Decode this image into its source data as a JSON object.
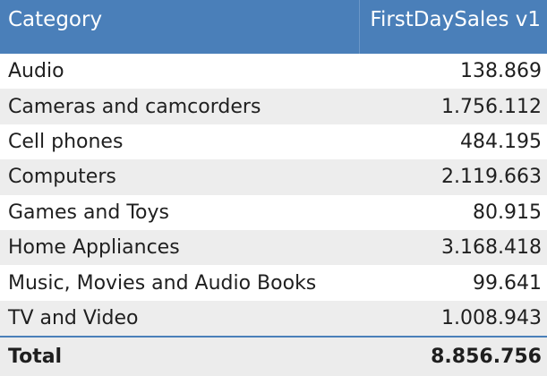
{
  "table": {
    "columns": [
      "Category",
      "FirstDaySales v1"
    ],
    "rows": [
      {
        "category": "Audio",
        "value": "138.869"
      },
      {
        "category": "Cameras and camcorders",
        "value": "1.756.112"
      },
      {
        "category": "Cell phones",
        "value": "484.195"
      },
      {
        "category": "Computers",
        "value": "2.119.663"
      },
      {
        "category": "Games and Toys",
        "value": "80.915"
      },
      {
        "category": "Home Appliances",
        "value": "3.168.418"
      },
      {
        "category": "Music, Movies and Audio Books",
        "value": "99.641"
      },
      {
        "category": "TV and Video",
        "value": "1.008.943"
      }
    ],
    "total": {
      "label": "Total",
      "value": "8.856.756"
    }
  },
  "colors": {
    "header_bg": "#4a7fb9",
    "header_text": "#ffffff",
    "alt_row_bg": "#ededed",
    "total_border": "#4a7fb9"
  }
}
